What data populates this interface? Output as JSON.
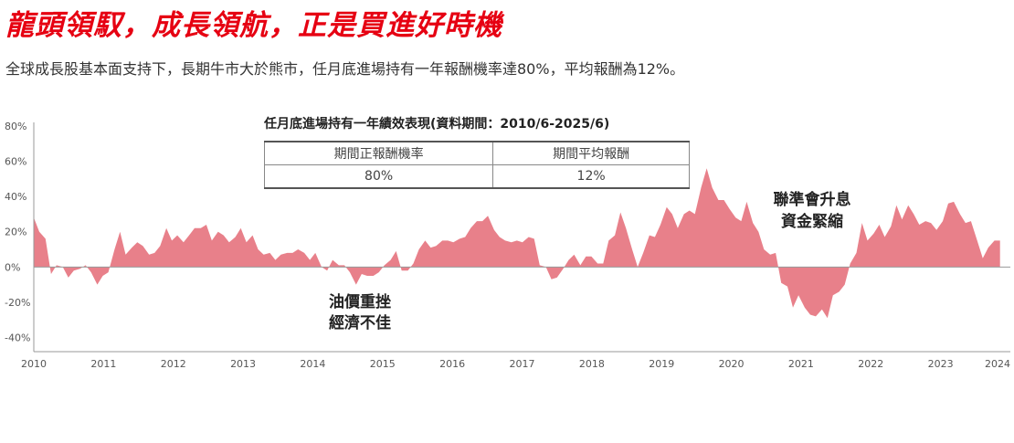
{
  "header": {
    "headline": "龍頭領馭，成長領航，正是買進好時機",
    "subtitle": "全球成長股基本面支持下，長期牛市大於熊市，任月底進場持有一年報酬機率達80%，平均報酬為12%。"
  },
  "table": {
    "title": "任月底進場持有一年績效表現(資料期間：2010/6-2025/6)",
    "headers": [
      "期間正報酬機率",
      "期間平均報酬"
    ],
    "values": [
      "80%",
      "12%"
    ]
  },
  "annotations": [
    {
      "line1": "油價重挫",
      "line2": "經濟不佳"
    },
    {
      "line1": "聯準會升息",
      "line2": "資金緊縮"
    }
  ],
  "colors": {
    "headline": "#e60012",
    "area": "#e8808a"
  },
  "chart_data": {
    "type": "area",
    "x_tick_labels": [
      "2010",
      "2011",
      "2012",
      "2013",
      "2014",
      "2015",
      "2016",
      "2017",
      "2018",
      "2019",
      "2020",
      "2021",
      "2022",
      "2023",
      "2024"
    ],
    "y_tick_labels": [
      "80%",
      "60%",
      "40%",
      "20%",
      "0%",
      "-20%",
      "-40%"
    ],
    "y_ticks": [
      80,
      60,
      40,
      20,
      0,
      -20,
      -40
    ],
    "xlim": [
      2010.0,
      2024.15
    ],
    "ylim": [
      -48,
      82
    ],
    "grid": false,
    "series": [
      {
        "points": [
          [
            2010.0,
            28
          ],
          [
            2010.08,
            20
          ],
          [
            2010.17,
            16
          ],
          [
            2010.25,
            -4
          ],
          [
            2010.33,
            1
          ],
          [
            2010.42,
            0
          ],
          [
            2010.5,
            -6
          ],
          [
            2010.58,
            -2
          ],
          [
            2010.67,
            -1
          ],
          [
            2010.75,
            1
          ],
          [
            2010.83,
            -3
          ],
          [
            2010.92,
            -10
          ],
          [
            2011.0,
            -5
          ],
          [
            2011.08,
            -3
          ],
          [
            2011.17,
            10
          ],
          [
            2011.25,
            20
          ],
          [
            2011.33,
            7
          ],
          [
            2011.42,
            11
          ],
          [
            2011.5,
            14
          ],
          [
            2011.58,
            12
          ],
          [
            2011.67,
            7
          ],
          [
            2011.75,
            8
          ],
          [
            2011.83,
            12
          ],
          [
            2011.92,
            22
          ],
          [
            2012.0,
            15
          ],
          [
            2012.08,
            18
          ],
          [
            2012.17,
            14
          ],
          [
            2012.25,
            18
          ],
          [
            2012.33,
            22
          ],
          [
            2012.42,
            22
          ],
          [
            2012.5,
            24
          ],
          [
            2012.58,
            15
          ],
          [
            2012.67,
            20
          ],
          [
            2012.75,
            18
          ],
          [
            2012.83,
            14
          ],
          [
            2012.92,
            17
          ],
          [
            2013.0,
            22
          ],
          [
            2013.08,
            14
          ],
          [
            2013.17,
            18
          ],
          [
            2013.25,
            10
          ],
          [
            2013.33,
            7
          ],
          [
            2013.42,
            8
          ],
          [
            2013.5,
            4
          ],
          [
            2013.58,
            7
          ],
          [
            2013.67,
            8
          ],
          [
            2013.75,
            8
          ],
          [
            2013.83,
            10
          ],
          [
            2013.92,
            8
          ],
          [
            2014.0,
            4
          ],
          [
            2014.08,
            8
          ],
          [
            2014.17,
            0
          ],
          [
            2014.25,
            -2
          ],
          [
            2014.33,
            4
          ],
          [
            2014.42,
            1
          ],
          [
            2014.5,
            1
          ],
          [
            2014.58,
            -3
          ],
          [
            2014.67,
            -10
          ],
          [
            2014.75,
            -4
          ],
          [
            2014.83,
            -5
          ],
          [
            2014.92,
            -5
          ],
          [
            2015.0,
            -3
          ],
          [
            2015.08,
            1
          ],
          [
            2015.17,
            4
          ],
          [
            2015.25,
            9
          ],
          [
            2015.33,
            -2
          ],
          [
            2015.42,
            -2
          ],
          [
            2015.5,
            2
          ],
          [
            2015.58,
            10
          ],
          [
            2015.67,
            15
          ],
          [
            2015.75,
            11
          ],
          [
            2015.83,
            12
          ],
          [
            2015.92,
            15
          ],
          [
            2016.0,
            15
          ],
          [
            2016.08,
            14
          ],
          [
            2016.17,
            16
          ],
          [
            2016.25,
            17
          ],
          [
            2016.33,
            22
          ],
          [
            2016.42,
            26
          ],
          [
            2016.5,
            26
          ],
          [
            2016.58,
            29
          ],
          [
            2016.67,
            21
          ],
          [
            2016.75,
            17
          ],
          [
            2016.83,
            15
          ],
          [
            2016.92,
            14
          ],
          [
            2017.0,
            15
          ],
          [
            2017.08,
            14
          ],
          [
            2017.17,
            17
          ],
          [
            2017.25,
            16
          ],
          [
            2017.33,
            1
          ],
          [
            2017.42,
            0
          ],
          [
            2017.5,
            -7
          ],
          [
            2017.58,
            -6
          ],
          [
            2017.67,
            -1
          ],
          [
            2017.75,
            4
          ],
          [
            2017.83,
            7
          ],
          [
            2017.92,
            1
          ],
          [
            2018.0,
            6
          ],
          [
            2018.08,
            6
          ],
          [
            2018.17,
            2
          ],
          [
            2018.25,
            2
          ],
          [
            2018.33,
            15
          ],
          [
            2018.42,
            18
          ],
          [
            2018.5,
            31
          ],
          [
            2018.58,
            22
          ],
          [
            2018.67,
            10
          ],
          [
            2018.75,
            0
          ],
          [
            2018.83,
            8
          ],
          [
            2018.92,
            18
          ],
          [
            2019.0,
            17
          ],
          [
            2019.08,
            24
          ],
          [
            2019.17,
            34
          ],
          [
            2019.25,
            30
          ],
          [
            2019.33,
            22
          ],
          [
            2019.42,
            30
          ],
          [
            2019.5,
            32
          ],
          [
            2019.58,
            30
          ],
          [
            2019.67,
            45
          ],
          [
            2019.75,
            56
          ],
          [
            2019.83,
            45
          ],
          [
            2019.92,
            38
          ],
          [
            2020.0,
            38
          ],
          [
            2020.08,
            33
          ],
          [
            2020.17,
            28
          ],
          [
            2020.25,
            26
          ],
          [
            2020.33,
            37
          ],
          [
            2020.42,
            25
          ],
          [
            2020.5,
            20
          ],
          [
            2020.58,
            10
          ],
          [
            2020.67,
            7
          ],
          [
            2020.75,
            8
          ],
          [
            2020.83,
            -9
          ],
          [
            2020.92,
            -11
          ],
          [
            2021.0,
            -23
          ],
          [
            2021.08,
            -16
          ],
          [
            2021.17,
            -23
          ],
          [
            2021.25,
            -27
          ],
          [
            2021.33,
            -28
          ],
          [
            2021.42,
            -24
          ],
          [
            2021.5,
            -29
          ],
          [
            2021.58,
            -16
          ],
          [
            2021.67,
            -14
          ],
          [
            2021.75,
            -10
          ],
          [
            2021.83,
            2
          ],
          [
            2021.92,
            8
          ],
          [
            2022.0,
            25
          ],
          [
            2022.08,
            15
          ],
          [
            2022.17,
            19
          ],
          [
            2022.25,
            24
          ],
          [
            2022.33,
            17
          ],
          [
            2022.42,
            23
          ],
          [
            2022.5,
            35
          ],
          [
            2022.58,
            27
          ],
          [
            2022.67,
            35
          ],
          [
            2022.75,
            30
          ],
          [
            2022.83,
            24
          ],
          [
            2022.92,
            26
          ],
          [
            2023.0,
            25
          ],
          [
            2023.08,
            21
          ],
          [
            2023.17,
            26
          ],
          [
            2023.25,
            36
          ],
          [
            2023.33,
            37
          ],
          [
            2023.42,
            30
          ],
          [
            2023.5,
            25
          ],
          [
            2023.58,
            26
          ],
          [
            2023.67,
            15
          ],
          [
            2023.75,
            5
          ],
          [
            2023.83,
            11
          ],
          [
            2023.92,
            15
          ],
          [
            2024.0,
            15
          ]
        ]
      }
    ]
  }
}
